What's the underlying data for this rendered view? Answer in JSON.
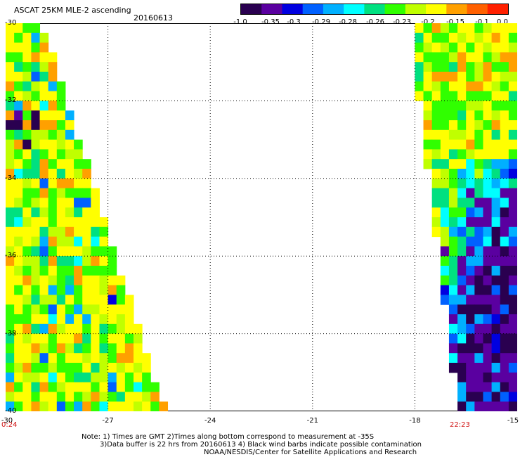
{
  "header": {
    "product": "ASCAT 25KM MLE-2 ascending",
    "date": "20160613"
  },
  "colorbar": {
    "labels": [
      "-1.0",
      "-0.35",
      "-0.3",
      "-0.29",
      "-0.28",
      "-0.26",
      "-0.23",
      "-0.2",
      "-0.15",
      "-0.1",
      "0.0"
    ],
    "colors": [
      "#2a0050",
      "#5a00a0",
      "#0000e0",
      "#0060ff",
      "#00b0ff",
      "#00ffff",
      "#00e080",
      "#30ff00",
      "#c0ff00",
      "#ffff00",
      "#ffa000",
      "#ff6000",
      "#ff2000"
    ]
  },
  "axes": {
    "y_ticks": [
      "-30",
      "-32",
      "-34",
      "-36",
      "-38",
      "-40"
    ],
    "x_ticks": [
      "-30",
      "-27",
      "-24",
      "-21",
      "-18",
      "-15"
    ]
  },
  "times": {
    "left": "0:24",
    "right": "22:23"
  },
  "notes": {
    "line1": "Note: 1) Times are GMT 2)Times along bottom correspond to measurement at -35S",
    "line2": "3)Data buffer is 22 hrs from 20160613 4) Black wind barbs indicate possible contamination",
    "line3": "NOAA/NESDIS/Center for Satellite Applications and Research"
  },
  "map_data": {
    "lon_range": [
      -30,
      -15
    ],
    "lat_range": [
      -40,
      -30
    ],
    "cell_size_deg": 0.25,
    "west_swath": {
      "description_free": true,
      "east_edge_lon_at_top": -29.0,
      "east_edge_lon_at_bottom": -25.4,
      "typical_value": -0.15
    },
    "east_swath": {
      "west_edge_lon_at_top": -18.0,
      "west_edge_lon_at_bottom": -16.6,
      "top_value": -0.15,
      "bottom_value": -0.35
    }
  }
}
